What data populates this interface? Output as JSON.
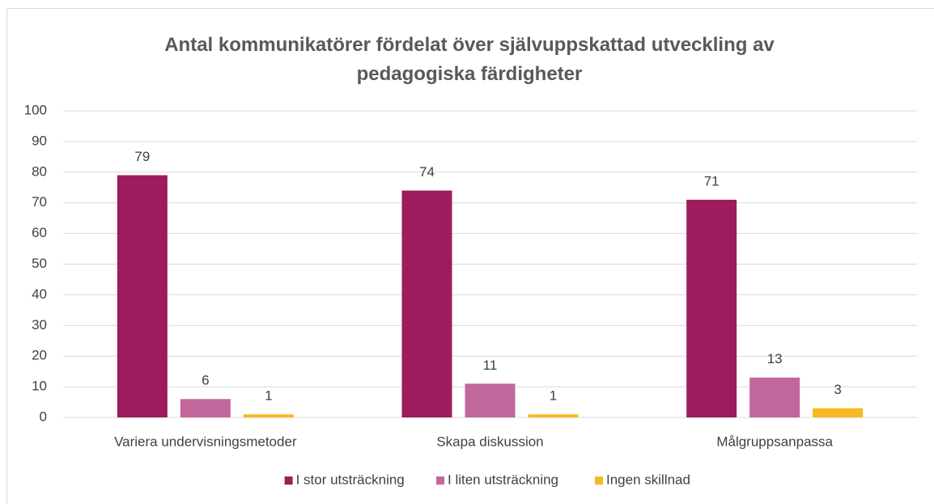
{
  "chart_data": {
    "type": "bar",
    "title": "Antal kommunikatörer fördelat över självuppskattad utveckling av pedagogiska färdigheter",
    "categories": [
      "Variera undervisningsmetoder",
      "Skapa diskussion",
      "Målgruppsanpassa"
    ],
    "series": [
      {
        "name": "I stor utsträckning",
        "color": "#9e1b5e",
        "values": [
          79,
          74,
          71
        ]
      },
      {
        "name": "I liten utsträckning",
        "color": "#c2679c",
        "values": [
          6,
          11,
          13
        ]
      },
      {
        "name": "Ingen skillnad",
        "color": "#f5b921",
        "values": [
          1,
          1,
          3
        ]
      }
    ],
    "ylim": [
      0,
      100
    ],
    "yticks": [
      0,
      10,
      20,
      30,
      40,
      50,
      60,
      70,
      80,
      90,
      100
    ],
    "grid": true,
    "legend": "bottom"
  }
}
